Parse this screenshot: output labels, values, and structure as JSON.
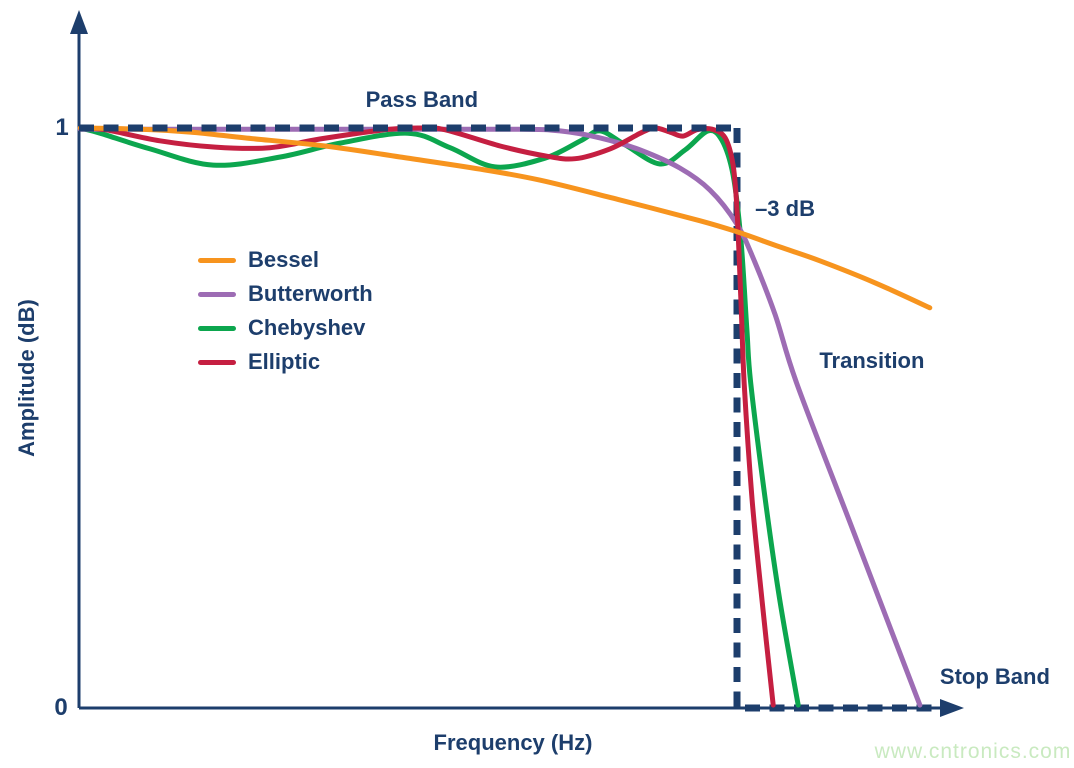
{
  "page": {
    "background": "#ffffff",
    "watermark": "www.cntronics.com",
    "watermark_color": "#C9EAC0",
    "accent_navy": "#1D3E6C"
  },
  "chart_data": {
    "type": "line",
    "title": "",
    "xlabel": "Frequency (Hz)",
    "ylabel": "Amplitude (dB)",
    "x_unit": "frequency normalized to -3 dB cutoff (cutoff = 1.0)",
    "xlim": [
      0,
      1.34
    ],
    "ylim": [
      0,
      1.17
    ],
    "grid": false,
    "xticks": [],
    "yticks": [
      {
        "value": 1,
        "label": "1"
      },
      {
        "value": 0,
        "label": "0"
      }
    ],
    "legend_position": "upper-left inside plot",
    "annotations": [
      {
        "text": "Pass Band",
        "x": 0.521,
        "y": 1.048
      },
      {
        "text": "–3 dB",
        "x": 1.073,
        "y": 0.86
      },
      {
        "text": "Transition",
        "x": 1.205,
        "y": 0.598
      },
      {
        "text": "Stop Band",
        "x": 1.392,
        "y": 0.053
      }
    ],
    "ideal_response": {
      "name": "Ideal brick-wall response (dashed)",
      "color": "#1D3E6C",
      "points": [
        [
          0,
          1
        ],
        [
          1,
          1
        ],
        [
          1,
          0
        ],
        [
          1.32,
          0
        ]
      ]
    },
    "series": [
      {
        "name": "Bessel",
        "color": "#F7941E",
        "points": [
          [
            0.002,
            1.0
          ],
          [
            0.093,
            0.998
          ],
          [
            0.169,
            0.993
          ],
          [
            0.252,
            0.983
          ],
          [
            0.374,
            0.969
          ],
          [
            0.488,
            0.95
          ],
          [
            0.61,
            0.929
          ],
          [
            0.701,
            0.91
          ],
          [
            0.822,
            0.876
          ],
          [
            0.944,
            0.84
          ],
          [
            1.0,
            0.821
          ],
          [
            1.065,
            0.795
          ],
          [
            1.126,
            0.771
          ],
          [
            1.21,
            0.733
          ],
          [
            1.293,
            0.69
          ]
        ]
      },
      {
        "name": "Butterworth",
        "color": "#9D6CB4",
        "points": [
          [
            0.002,
            0.998
          ],
          [
            0.25,
            0.998
          ],
          [
            0.5,
            0.998
          ],
          [
            0.67,
            0.998
          ],
          [
            0.731,
            0.995
          ],
          [
            0.792,
            0.983
          ],
          [
            0.853,
            0.962
          ],
          [
            0.913,
            0.931
          ],
          [
            0.959,
            0.893
          ],
          [
            1.0,
            0.834
          ],
          [
            1.027,
            0.769
          ],
          [
            1.058,
            0.678
          ],
          [
            1.091,
            0.559
          ],
          [
            1.172,
            0.319
          ],
          [
            1.233,
            0.138
          ],
          [
            1.278,
            0.005
          ]
        ]
      },
      {
        "name": "Chebyshev",
        "color": "#0CA64E",
        "points": [
          [
            0.002,
            1.0
          ],
          [
            0.032,
            0.991
          ],
          [
            0.108,
            0.964
          ],
          [
            0.204,
            0.936
          ],
          [
            0.306,
            0.95
          ],
          [
            0.397,
            0.974
          ],
          [
            0.5,
            0.991
          ],
          [
            0.564,
            0.966
          ],
          [
            0.632,
            0.933
          ],
          [
            0.708,
            0.948
          ],
          [
            0.764,
            0.979
          ],
          [
            0.792,
            0.995
          ],
          [
            0.83,
            0.971
          ],
          [
            0.883,
            0.938
          ],
          [
            0.921,
            0.962
          ],
          [
            0.956,
            0.995
          ],
          [
            0.977,
            0.979
          ],
          [
            0.994,
            0.919
          ],
          [
            1.006,
            0.807
          ],
          [
            1.015,
            0.652
          ],
          [
            1.021,
            0.559
          ],
          [
            1.043,
            0.359
          ],
          [
            1.065,
            0.186
          ],
          [
            1.093,
            0.005
          ]
        ]
      },
      {
        "name": "Elliptic",
        "color": "#C51F41",
        "points": [
          [
            0.002,
            1.0
          ],
          [
            0.04,
            0.997
          ],
          [
            0.123,
            0.978
          ],
          [
            0.207,
            0.967
          ],
          [
            0.29,
            0.966
          ],
          [
            0.366,
            0.981
          ],
          [
            0.465,
            0.997
          ],
          [
            0.518,
            1.0
          ],
          [
            0.556,
            0.997
          ],
          [
            0.64,
            0.969
          ],
          [
            0.708,
            0.952
          ],
          [
            0.754,
            0.947
          ],
          [
            0.807,
            0.964
          ],
          [
            0.853,
            0.991
          ],
          [
            0.875,
            1.0
          ],
          [
            0.898,
            0.993
          ],
          [
            0.918,
            0.986
          ],
          [
            0.939,
            0.997
          ],
          [
            0.962,
            0.998
          ],
          [
            0.982,
            0.983
          ],
          [
            0.994,
            0.936
          ],
          [
            1.0,
            0.859
          ],
          [
            1.006,
            0.703
          ],
          [
            1.011,
            0.559
          ],
          [
            1.023,
            0.359
          ],
          [
            1.038,
            0.186
          ],
          [
            1.055,
            0.005
          ]
        ]
      }
    ]
  }
}
